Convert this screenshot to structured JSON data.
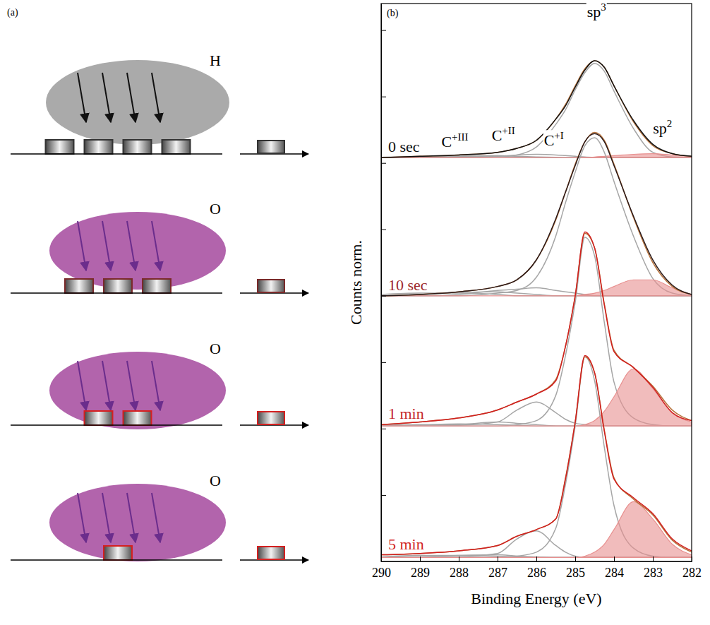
{
  "diagram": {
    "label": "(a)",
    "rows": [
      {
        "gas": "H",
        "blocks": 4,
        "plasma_color": "#aaaaaa",
        "arrow_color": "#111111",
        "edge_color": "#333333"
      },
      {
        "gas": "O",
        "blocks": 3,
        "plasma_color": "#b264ac",
        "arrow_color": "#6b2d8c",
        "edge_color": "#7a2a2a"
      },
      {
        "gas": "O",
        "blocks": 2,
        "plasma_color": "#b264ac",
        "arrow_color": "#6b2d8c",
        "edge_color": "#d42020"
      },
      {
        "gas": "O",
        "blocks": 1,
        "plasma_color": "#b264ac",
        "arrow_color": "#6b2d8c",
        "edge_color": "#d42020"
      }
    ]
  },
  "chart_data": {
    "type": "line",
    "panel_label": "(b)",
    "x_label": "Binding Energy (eV)",
    "y_label": "Counts norm.",
    "xlim": [
      290,
      282
    ],
    "xticks": [
      290,
      289,
      288,
      287,
      286,
      285,
      284,
      283,
      282
    ],
    "ylim": [
      0,
      4.2
    ],
    "yticks": [
      0,
      0.5,
      1,
      1.5,
      2,
      2.5,
      3,
      3.5,
      4
    ],
    "tick_labels": "x",
    "x": [
      290,
      289,
      288,
      287,
      286.5,
      286,
      285.5,
      285.25,
      285,
      284.75,
      284.5,
      284.25,
      284,
      283.5,
      283,
      282.5,
      282
    ],
    "spectra": [
      {
        "label": "0 sec",
        "color": "#111111",
        "series": [
          {
            "type": "line",
            "color": "#a6a6a6",
            "values": [
              3.042,
              3.048,
              3.05,
              3.046,
              3.043,
              3.04,
              3.04,
              3.04,
              3.04,
              3.04,
              3.04,
              3.04,
              3.04,
              3.04,
              3.04,
              3.04,
              3.04
            ]
          },
          {
            "type": "line",
            "color": "#a6a6a6",
            "values": [
              3.04,
              3.042,
              3.05,
              3.055,
              3.05,
              3.045,
              3.042,
              3.04,
              3.04,
              3.04,
              3.04,
              3.04,
              3.04,
              3.04,
              3.04,
              3.04,
              3.04
            ]
          },
          {
            "type": "line",
            "color": "#a6a6a6",
            "values": [
              3.04,
              3.04,
              3.042,
              3.05,
              3.06,
              3.065,
              3.06,
              3.055,
              3.05,
              3.045,
              3.042,
              3.04,
              3.04,
              3.04,
              3.04,
              3.04,
              3.04
            ]
          },
          {
            "type": "line",
            "color": "#a6a6a6",
            "values": [
              3.04,
              3.04,
              3.04,
              3.045,
              3.06,
              3.12,
              3.29,
              3.4,
              3.55,
              3.68,
              3.75,
              3.69,
              3.54,
              3.26,
              3.08,
              3.045,
              3.04
            ]
          },
          {
            "type": "area",
            "color": "#e8908f",
            "values": [
              3.04,
              3.04,
              3.04,
              3.04,
              3.04,
              3.04,
              3.04,
              3.04,
              3.04,
              3.042,
              3.045,
              3.05,
              3.055,
              3.065,
              3.07,
              3.06,
              3.05
            ]
          },
          {
            "type": "line",
            "color": "#b8733c",
            "values": [
              3.04,
              3.05,
              3.06,
              3.08,
              3.11,
              3.17,
              3.33,
              3.44,
              3.58,
              3.71,
              3.77,
              3.72,
              3.58,
              3.31,
              3.13,
              3.07,
              3.05
            ]
          },
          {
            "type": "line",
            "color": "#111111",
            "values": [
              3.04,
              3.05,
              3.06,
              3.08,
              3.11,
              3.17,
              3.33,
              3.43,
              3.57,
              3.7,
              3.77,
              3.72,
              3.58,
              3.32,
              3.14,
              3.07,
              3.05
            ]
          }
        ]
      },
      {
        "label": "10 sec",
        "color": "#9e2a2a",
        "series": [
          {
            "type": "line",
            "color": "#a6a6a6",
            "values": [
              2.01,
              2.02,
              2.02,
              2.01,
              2.0,
              2.0,
              2.0,
              2.0,
              2.0,
              2.0,
              2.0,
              2.0,
              2.0,
              2.0,
              2.0,
              2.0,
              2.0
            ]
          },
          {
            "type": "line",
            "color": "#a6a6a6",
            "values": [
              2.0,
              2.01,
              2.025,
              2.03,
              2.02,
              2.01,
              2.0,
              2.0,
              2.0,
              2.0,
              2.0,
              2.0,
              2.0,
              2.0,
              2.0,
              2.0,
              2.0
            ]
          },
          {
            "type": "line",
            "color": "#a6a6a6",
            "values": [
              2.0,
              2.0,
              2.01,
              2.04,
              2.05,
              2.06,
              2.04,
              2.03,
              2.02,
              2.01,
              2.0,
              2.0,
              2.0,
              2.0,
              2.0,
              2.0,
              2.0
            ]
          },
          {
            "type": "line",
            "color": "#a6a6a6",
            "values": [
              2.0,
              2.0,
              2.0,
              2.02,
              2.04,
              2.14,
              2.45,
              2.7,
              2.93,
              3.13,
              3.19,
              3.08,
              2.86,
              2.45,
              2.13,
              2.02,
              2.0
            ]
          },
          {
            "type": "area",
            "color": "#e8908f",
            "values": [
              2.0,
              2.0,
              2.0,
              2.0,
              2.0,
              2.0,
              2.0,
              2.0,
              2.0,
              2.01,
              2.02,
              2.04,
              2.07,
              2.12,
              2.12,
              2.06,
              2.01
            ]
          },
          {
            "type": "line",
            "color": "#b8733c",
            "values": [
              2.0,
              2.01,
              2.03,
              2.07,
              2.12,
              2.27,
              2.57,
              2.78,
              2.99,
              3.16,
              3.23,
              3.17,
              2.99,
              2.59,
              2.25,
              2.07,
              2.01
            ]
          },
          {
            "type": "line",
            "color": "#2a1a1a",
            "values": [
              2.0,
              2.01,
              2.03,
              2.07,
              2.12,
              2.27,
              2.58,
              2.78,
              2.98,
              3.16,
              3.22,
              3.16,
              2.98,
              2.6,
              2.27,
              2.08,
              2.01
            ]
          }
        ]
      },
      {
        "label": "1 min",
        "color": "#c4262b",
        "series": [
          {
            "type": "line",
            "color": "#a6a6a6",
            "values": [
              1.025,
              1.03,
              1.035,
              1.03,
              1.025,
              1.02,
              1.02,
              1.02,
              1.02,
              1.02,
              1.02,
              1.02,
              1.02,
              1.02,
              1.02,
              1.02,
              1.02
            ]
          },
          {
            "type": "line",
            "color": "#a6a6a6",
            "values": [
              1.02,
              1.025,
              1.03,
              1.05,
              1.04,
              1.03,
              1.02,
              1.02,
              1.02,
              1.02,
              1.02,
              1.02,
              1.02,
              1.02,
              1.02,
              1.02,
              1.02
            ]
          },
          {
            "type": "line",
            "color": "#a6a6a6",
            "values": [
              1.02,
              1.02,
              1.025,
              1.05,
              1.14,
              1.2,
              1.12,
              1.07,
              1.04,
              1.03,
              1.02,
              1.02,
              1.02,
              1.02,
              1.02,
              1.02,
              1.02
            ]
          },
          {
            "type": "line",
            "color": "#a6a6a6",
            "values": [
              1.02,
              1.02,
              1.02,
              1.02,
              1.03,
              1.06,
              1.25,
              1.55,
              1.95,
              2.44,
              2.3,
              1.8,
              1.35,
              1.08,
              1.03,
              1.02,
              1.02
            ]
          },
          {
            "type": "area",
            "color": "#e8908f",
            "values": [
              1.02,
              1.02,
              1.02,
              1.02,
              1.02,
              1.02,
              1.02,
              1.02,
              1.02,
              1.03,
              1.06,
              1.13,
              1.24,
              1.45,
              1.3,
              1.12,
              1.05
            ]
          },
          {
            "type": "line",
            "color": "#b8733c",
            "values": [
              1.03,
              1.05,
              1.08,
              1.14,
              1.2,
              1.26,
              1.37,
              1.62,
              2.0,
              2.47,
              2.36,
              1.94,
              1.59,
              1.46,
              1.32,
              1.14,
              1.06
            ]
          },
          {
            "type": "line",
            "color": "#d11f1f",
            "values": [
              1.03,
              1.05,
              1.08,
              1.14,
              1.2,
              1.26,
              1.36,
              1.62,
              2.0,
              2.48,
              2.36,
              1.93,
              1.58,
              1.46,
              1.31,
              1.12,
              1.06
            ]
          }
        ]
      },
      {
        "label": "5 min",
        "color": "#d11f1f",
        "series": [
          {
            "type": "line",
            "color": "#a6a6a6",
            "values": [
              0.035,
              0.045,
              0.045,
              0.04,
              0.035,
              0.03,
              0.03,
              0.03,
              0.03,
              0.03,
              0.03,
              0.03,
              0.03,
              0.03,
              0.03,
              0.03,
              0.03
            ]
          },
          {
            "type": "line",
            "color": "#a6a6a6",
            "values": [
              0.03,
              0.035,
              0.045,
              0.05,
              0.04,
              0.035,
              0.03,
              0.03,
              0.03,
              0.03,
              0.03,
              0.03,
              0.03,
              0.03,
              0.03,
              0.03,
              0.03
            ]
          },
          {
            "type": "line",
            "color": "#a6a6a6",
            "values": [
              0.03,
              0.03,
              0.035,
              0.06,
              0.17,
              0.23,
              0.12,
              0.07,
              0.04,
              0.03,
              0.03,
              0.03,
              0.03,
              0.03,
              0.03,
              0.03,
              0.03
            ]
          },
          {
            "type": "line",
            "color": "#a6a6a6",
            "values": [
              0.03,
              0.03,
              0.03,
              0.03,
              0.04,
              0.07,
              0.25,
              0.58,
              1.02,
              1.54,
              1.36,
              0.86,
              0.42,
              0.1,
              0.04,
              0.03,
              0.03
            ]
          },
          {
            "type": "area",
            "color": "#e8908f",
            "values": [
              0.03,
              0.03,
              0.03,
              0.03,
              0.03,
              0.03,
              0.03,
              0.03,
              0.03,
              0.04,
              0.07,
              0.13,
              0.24,
              0.45,
              0.32,
              0.13,
              0.05
            ]
          },
          {
            "type": "line",
            "color": "#b8733c",
            "values": [
              0.05,
              0.06,
              0.08,
              0.12,
              0.19,
              0.24,
              0.32,
              0.63,
              1.05,
              1.54,
              1.42,
              0.99,
              0.63,
              0.47,
              0.35,
              0.16,
              0.07
            ]
          },
          {
            "type": "line",
            "color": "#d11f1f",
            "values": [
              0.05,
              0.06,
              0.08,
              0.12,
              0.19,
              0.24,
              0.32,
              0.62,
              1.05,
              1.55,
              1.42,
              0.98,
              0.62,
              0.48,
              0.36,
              0.17,
              0.08
            ]
          }
        ]
      }
    ],
    "annotations": [
      {
        "text": "sp",
        "sup": "3",
        "x": 284.45,
        "y": 4.1
      },
      {
        "text": "sp",
        "sup": "2",
        "x": 282.75,
        "y": 3.22
      },
      {
        "text": "C",
        "sup": "+I",
        "x": 285.55,
        "y": 3.13
      },
      {
        "text": "C",
        "sup": "+II",
        "x": 286.85,
        "y": 3.17
      },
      {
        "text": "C",
        "sup": "+III",
        "x": 288.1,
        "y": 3.12
      }
    ]
  }
}
